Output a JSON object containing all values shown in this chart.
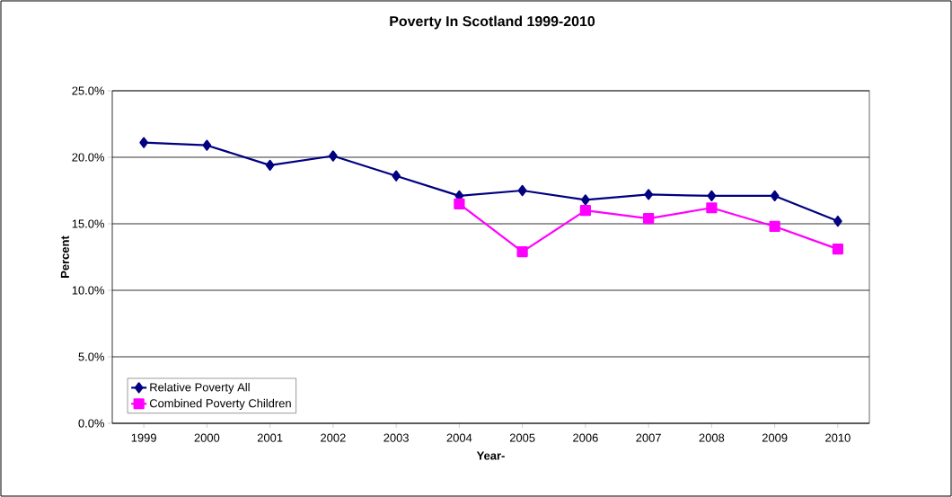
{
  "chart_data": {
    "type": "line",
    "title": "Poverty In Scotland 1999-2010",
    "xlabel": "Year-",
    "ylabel": "Percent",
    "categories": [
      "1999",
      "2000",
      "2001",
      "2002",
      "2003",
      "2004",
      "2005",
      "2006",
      "2007",
      "2008",
      "2009",
      "2010"
    ],
    "series": [
      {
        "name": "Relative Poverty All",
        "color": "#000080",
        "marker": "diamond",
        "values": [
          21.1,
          20.9,
          19.4,
          20.1,
          18.6,
          17.1,
          17.5,
          16.8,
          17.2,
          17.1,
          17.1,
          15.2
        ]
      },
      {
        "name": "Combined Poverty Children",
        "color": "#ff00ff",
        "marker": "square",
        "values": [
          null,
          null,
          null,
          null,
          null,
          16.5,
          12.9,
          16.0,
          15.4,
          16.2,
          14.8,
          13.1
        ]
      }
    ],
    "ylim": [
      0,
      25
    ],
    "yticks": [
      {
        "value": 0,
        "label": "0.0%"
      },
      {
        "value": 5,
        "label": "5.0%"
      },
      {
        "value": 10,
        "label": "10.0%"
      },
      {
        "value": 15,
        "label": "15.0%"
      },
      {
        "value": 20,
        "label": "20.0%"
      },
      {
        "value": 25,
        "label": "25.0%"
      }
    ],
    "grid": "y",
    "legend": "bottom left",
    "line_style": "solid"
  }
}
